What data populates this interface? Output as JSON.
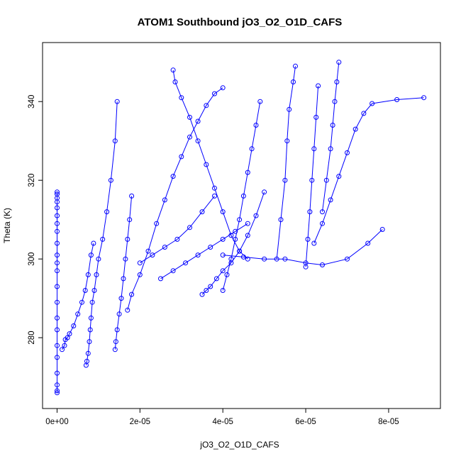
{
  "chart_data": {
    "type": "scatter",
    "title": "ATOM1 Southbound jO3_O2_O1D_CAFS",
    "xlabel": "jO3_O2_O1D_CAFS",
    "ylabel": "Theta (K)",
    "xlim": [
      -3.5e-06,
      9.25e-05
    ],
    "ylim": [
      262,
      355
    ],
    "x_ticks": [
      0,
      2e-05,
      4e-05,
      6e-05,
      8e-05
    ],
    "x_tick_labels": [
      "0e+00",
      "2e-05",
      "4e-05",
      "6e-05",
      "8e-05"
    ],
    "y_ticks": [
      280,
      300,
      320,
      340
    ],
    "y_tick_labels": [
      "280",
      "300",
      "320",
      "340"
    ],
    "grid": false,
    "color": "#0000ff",
    "marker": "open-circle",
    "connected": true,
    "series": [
      {
        "x": [
          0,
          0,
          0,
          0,
          0,
          0,
          0,
          0,
          0,
          0,
          0,
          0,
          0,
          0,
          0,
          0,
          0,
          0,
          0,
          0,
          0,
          0
        ],
        "y": [
          266,
          266.5,
          268,
          271,
          275,
          278,
          282,
          285,
          289,
          293,
          297,
          299,
          301,
          304,
          307,
          309,
          311,
          313,
          314.5,
          315.5,
          316.5,
          317
        ]
      },
      {
        "x": [
          1.2e-06,
          1.8e-06,
          2e-06,
          2.5e-06,
          3e-06,
          4e-06,
          5e-06,
          6e-06,
          6.8e-06,
          7.5e-06,
          8.2e-06,
          8.8e-06
        ],
        "y": [
          277,
          278,
          279.5,
          280,
          281,
          283,
          286,
          289,
          292,
          296,
          301,
          304
        ]
      },
      {
        "x": [
          7e-06,
          7.2e-06,
          7.5e-06,
          7.8e-06,
          8e-06,
          8.2e-06,
          8.5e-06,
          9e-06,
          9.5e-06,
          1e-05,
          1.1e-05,
          1.2e-05,
          1.3e-05,
          1.4e-05,
          1.45e-05
        ],
        "y": [
          273,
          274,
          276,
          279,
          282,
          285,
          289,
          292,
          296,
          300,
          305,
          312,
          320,
          330,
          340
        ]
      },
      {
        "x": [
          1.4e-05,
          1.42e-05,
          1.45e-05,
          1.5e-05,
          1.55e-05,
          1.6e-05,
          1.65e-05,
          1.7e-05,
          1.75e-05,
          1.8e-05
        ],
        "y": [
          277,
          279,
          282,
          286,
          290,
          295,
          300,
          305,
          310,
          316
        ]
      },
      {
        "x": [
          1.7e-05,
          1.8e-05,
          2e-05,
          2.2e-05,
          2.4e-05,
          2.6e-05,
          2.8e-05,
          3e-05,
          3.2e-05,
          3.4e-05,
          3.6e-05,
          3.8e-05,
          4e-05
        ],
        "y": [
          287,
          291,
          296,
          302,
          309,
          315,
          321,
          326,
          331,
          335,
          339,
          342,
          343.5
        ]
      },
      {
        "x": [
          2.8e-05,
          2.85e-05,
          3e-05,
          3.2e-05,
          3.4e-05,
          3.6e-05,
          3.8e-05,
          4e-05,
          4.2e-05,
          4.4e-05,
          4.6e-05
        ],
        "y": [
          348,
          345,
          341,
          336,
          330,
          324,
          318,
          312,
          306,
          302,
          300
        ]
      },
      {
        "x": [
          3.5e-05,
          3.6e-05,
          3.7e-05,
          3.85e-05,
          4e-05,
          4.2e-05,
          4.4e-05,
          4.6e-05,
          4.8e-05,
          5e-05
        ],
        "y": [
          291,
          292,
          293,
          295,
          297,
          299,
          302,
          306,
          311,
          317
        ]
      },
      {
        "x": [
          4e-05,
          4.1e-05,
          4.2e-05,
          4.3e-05,
          4.4e-05,
          4.5e-05,
          4.6e-05,
          4.7e-05,
          4.8e-05,
          4.9e-05
        ],
        "y": [
          292,
          296,
          300,
          305,
          310,
          316,
          322,
          328,
          334,
          340
        ]
      },
      {
        "x": [
          4e-05,
          4.5e-05,
          5e-05,
          5.5e-05,
          6e-05,
          6.4e-05,
          7e-05,
          7.5e-05,
          7.85e-05
        ],
        "y": [
          301,
          300.5,
          300,
          300,
          299,
          298.5,
          300,
          304,
          307.5
        ]
      },
      {
        "x": [
          5.3e-05,
          5.4e-05,
          5.5e-05,
          5.55e-05,
          5.6e-05,
          5.7e-05,
          5.75e-05
        ],
        "y": [
          300,
          310,
          320,
          330,
          338,
          345,
          349
        ]
      },
      {
        "x": [
          6.2e-05,
          6.4e-05,
          6.6e-05,
          6.8e-05,
          7e-05,
          7.2e-05,
          7.4e-05,
          7.6e-05,
          8.2e-05,
          8.85e-05
        ],
        "y": [
          304,
          309,
          315,
          321,
          327,
          333,
          337,
          339.5,
          340.5,
          341
        ]
      },
      {
        "x": [
          6.4e-05,
          6.5e-05,
          6.6e-05,
          6.65e-05,
          6.7e-05,
          6.75e-05,
          6.8e-05
        ],
        "y": [
          312,
          320,
          328,
          334,
          340,
          345,
          350
        ]
      },
      {
        "x": [
          6e-05,
          6.05e-05,
          6.1e-05,
          6.15e-05,
          6.2e-05,
          6.25e-05,
          6.3e-05
        ],
        "y": [
          298,
          305,
          312,
          320,
          328,
          336,
          344
        ]
      },
      {
        "x": [
          2e-05,
          2.3e-05,
          2.6e-05,
          2.9e-05,
          3.2e-05,
          3.5e-05,
          3.8e-05
        ],
        "y": [
          299,
          301,
          303,
          305,
          308,
          312,
          316
        ]
      },
      {
        "x": [
          2.5e-05,
          2.8e-05,
          3.1e-05,
          3.4e-05,
          3.7e-05,
          4e-05,
          4.3e-05,
          4.6e-05
        ],
        "y": [
          295,
          297,
          299,
          301,
          303,
          305,
          307,
          309
        ]
      }
    ]
  }
}
